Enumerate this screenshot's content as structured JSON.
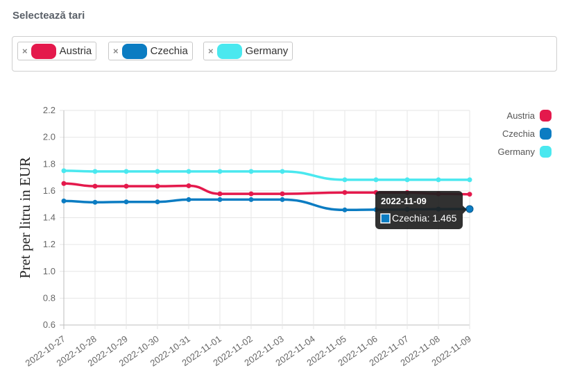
{
  "selector": {
    "label": "Selectează tari",
    "remove_symbol": "×",
    "chips": [
      {
        "name": "Austria",
        "color": "#e4194c"
      },
      {
        "name": "Czechia",
        "color": "#0b7cc2"
      },
      {
        "name": "Germany",
        "color": "#4ae8ef"
      }
    ]
  },
  "tooltip": {
    "title": "2022-11-09",
    "series": "Czechia",
    "value": "1.465",
    "text": "Czechia: 1.465"
  },
  "chart_data": {
    "type": "line",
    "ylabel": "Pret per litru in EUR",
    "xlabel": "",
    "ylim": [
      0.6,
      2.2
    ],
    "yticks": [
      0.6,
      0.8,
      1.0,
      1.2,
      1.4,
      1.6,
      1.8,
      2.0,
      2.2
    ],
    "grid": true,
    "legend_position": "right",
    "x": [
      "2022-10-27",
      "2022-10-28",
      "2022-10-29",
      "2022-10-30",
      "2022-10-31",
      "2022-11-01",
      "2022-11-02",
      "2022-11-03",
      "2022-11-04",
      "2022-11-05",
      "2022-11-06",
      "2022-11-07",
      "2022-11-08",
      "2022-11-09"
    ],
    "series": [
      {
        "name": "Austria",
        "color": "#e4194c",
        "values": [
          1.655,
          1.635,
          1.635,
          1.635,
          1.638,
          1.578,
          1.578,
          1.578,
          null,
          1.588,
          1.588,
          1.588,
          1.578,
          1.575
        ]
      },
      {
        "name": "Czechia",
        "color": "#0b7cc2",
        "values": [
          1.525,
          1.515,
          1.518,
          1.518,
          1.535,
          1.535,
          1.535,
          1.535,
          null,
          1.458,
          1.46,
          1.462,
          1.464,
          1.465
        ]
      },
      {
        "name": "Germany",
        "color": "#4ae8ef",
        "values": [
          1.75,
          1.745,
          1.745,
          1.745,
          1.745,
          1.745,
          1.745,
          1.745,
          null,
          1.683,
          1.683,
          1.683,
          1.683,
          1.683
        ]
      }
    ]
  }
}
